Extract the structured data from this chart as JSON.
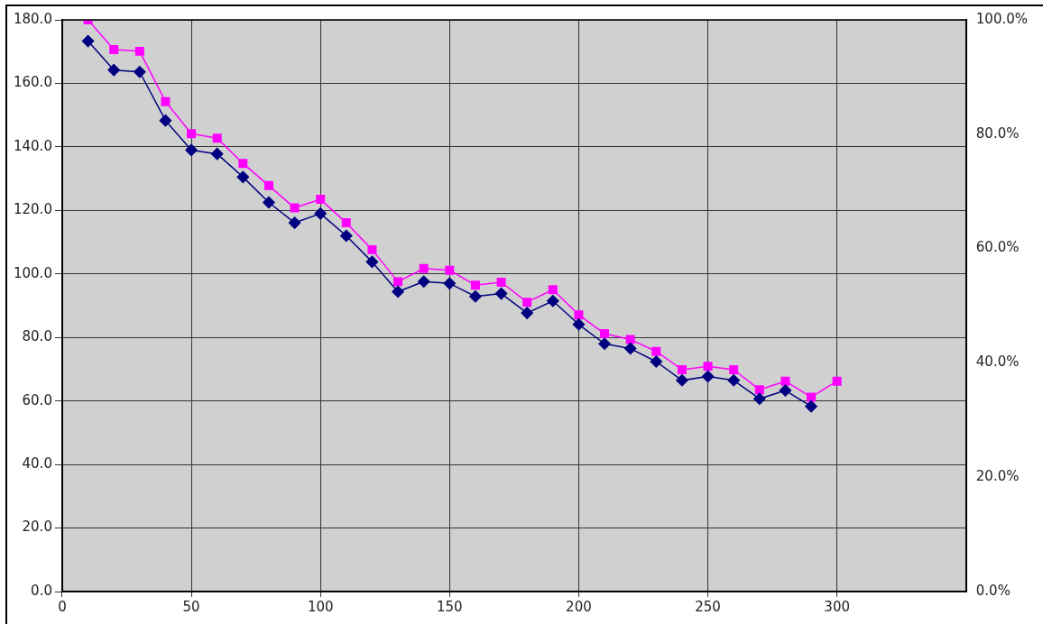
{
  "chart_data": {
    "type": "line",
    "xlim": [
      0,
      350
    ],
    "xticks": [
      0,
      50,
      100,
      150,
      200,
      250,
      300
    ],
    "ylim": [
      0,
      180
    ],
    "yticks": [
      {
        "value": 0,
        "label": "0.0"
      },
      {
        "value": 20,
        "label": "20.0"
      },
      {
        "value": 40,
        "label": "40.0"
      },
      {
        "value": 60,
        "label": "60.0"
      },
      {
        "value": 80,
        "label": "80.0"
      },
      {
        "value": 100,
        "label": "100.0"
      },
      {
        "value": 120,
        "label": "120.0"
      },
      {
        "value": 140,
        "label": "140.0"
      },
      {
        "value": 160,
        "label": "160.0"
      },
      {
        "value": 180,
        "label": "180.0"
      }
    ],
    "y2lim": [
      0,
      100
    ],
    "y2ticks": [
      {
        "value": 0,
        "label": "0.0%"
      },
      {
        "value": 20,
        "label": "20.0%"
      },
      {
        "value": 40,
        "label": "40.0%"
      },
      {
        "value": 60,
        "label": "60.0%"
      },
      {
        "value": 80,
        "label": "80.0%"
      },
      {
        "value": 100,
        "label": "100.0%"
      }
    ],
    "grid": true,
    "series": [
      {
        "color": "#000080",
        "marker": "diamond",
        "x": [
          10,
          20,
          30,
          40,
          50,
          60,
          70,
          80,
          90,
          100,
          110,
          120,
          130,
          140,
          150,
          160,
          170,
          180,
          190,
          200,
          210,
          220,
          230,
          240,
          250,
          260,
          270,
          280,
          290
        ],
        "values": [
          173.3,
          164.2,
          163.6,
          148.3,
          139.0,
          137.8,
          130.5,
          122.5,
          116.1,
          119.0,
          112.0,
          103.8,
          94.4,
          97.6,
          97.0,
          92.9,
          93.8,
          87.7,
          91.5,
          84.1,
          78.0,
          76.5,
          72.4,
          66.5,
          67.7,
          66.5,
          60.7,
          63.3,
          58.3
        ]
      },
      {
        "color": "#ff00ff",
        "marker": "square",
        "axis": "y2",
        "x": [
          10,
          20,
          30,
          40,
          50,
          60,
          70,
          80,
          90,
          100,
          110,
          120,
          130,
          140,
          150,
          160,
          170,
          180,
          190,
          200,
          210,
          220,
          230,
          240,
          250,
          260,
          270,
          280,
          290,
          300
        ],
        "values": [
          100.0,
          94.8,
          94.5,
          85.7,
          80.1,
          79.3,
          74.9,
          71.0,
          67.1,
          68.6,
          64.5,
          59.8,
          54.2,
          56.5,
          56.2,
          53.6,
          54.1,
          50.6,
          52.8,
          48.4,
          45.1,
          44.1,
          42.0,
          38.8,
          39.4,
          38.8,
          35.3,
          36.8,
          34.0,
          36.8
        ]
      }
    ]
  }
}
